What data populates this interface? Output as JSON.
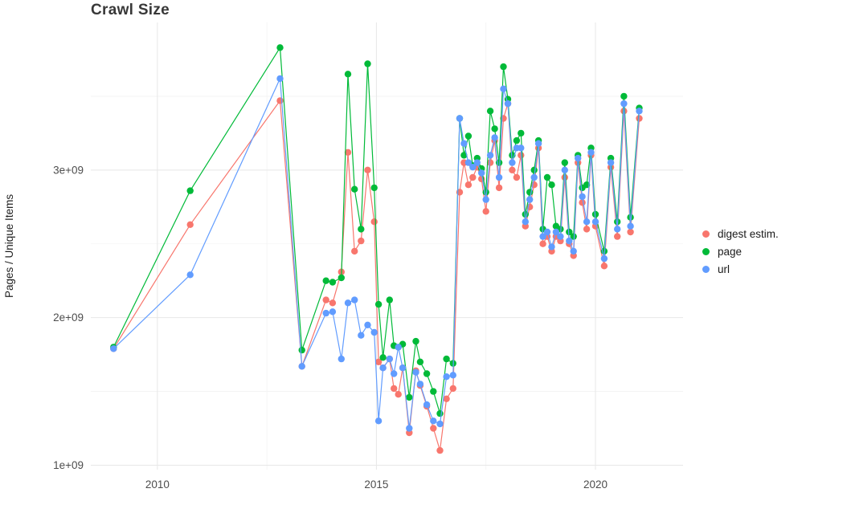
{
  "title": "Crawl Size",
  "ylabel": "Pages / Unique Items",
  "colors": {
    "digest": "#F8766D",
    "page": "#00BA38",
    "url": "#619CFF",
    "grid_major": "#E7E7E7",
    "grid_minor": "#F3F3F3",
    "axis_text": "#4d4d4d"
  },
  "chart_data": {
    "type": "line",
    "title": "Crawl Size",
    "xlabel": "",
    "ylabel": "Pages / Unique Items",
    "grid": true,
    "legend_position": "right",
    "x_range": [
      2008.48,
      2022.0
    ],
    "y_range": [
      970000000,
      4000000000
    ],
    "x_ticks": {
      "values": [
        2010,
        2015,
        2020
      ],
      "labels": [
        "2010",
        "2015",
        "2020"
      ]
    },
    "y_ticks": {
      "values": [
        1000000000,
        2000000000,
        3000000000
      ],
      "labels": [
        "1e+09",
        "2e+09",
        "3e+09"
      ]
    },
    "x_minor": [
      2012.5,
      2017.5
    ],
    "y_minor": [
      1500000000,
      2500000000,
      3500000000
    ],
    "x": [
      2009.0,
      2010.75,
      2012.8,
      2013.3,
      2013.85,
      2014.0,
      2014.2,
      2014.35,
      2014.5,
      2014.65,
      2014.8,
      2014.95,
      2015.05,
      2015.15,
      2015.3,
      2015.4,
      2015.5,
      2015.6,
      2015.75,
      2015.9,
      2016.0,
      2016.15,
      2016.3,
      2016.45,
      2016.6,
      2016.75,
      2016.9,
      2017.0,
      2017.1,
      2017.2,
      2017.3,
      2017.4,
      2017.5,
      2017.6,
      2017.7,
      2017.8,
      2017.9,
      2018.0,
      2018.1,
      2018.2,
      2018.3,
      2018.4,
      2018.5,
      2018.6,
      2018.7,
      2018.8,
      2018.9,
      2019.0,
      2019.1,
      2019.2,
      2019.3,
      2019.4,
      2019.5,
      2019.6,
      2019.7,
      2019.8,
      2019.9,
      2020.0,
      2020.2,
      2020.35,
      2020.5,
      2020.65,
      2020.8,
      2021.0
    ],
    "series": [
      {
        "name": "digest estim.",
        "color": "#F8766D",
        "values": [
          1790000000.0,
          2630000000.0,
          3470000000.0,
          1670000000.0,
          2120000000.0,
          2100000000.0,
          2310000000.0,
          3120000000.0,
          2450000000.0,
          2520000000.0,
          3000000000.0,
          2650000000.0,
          1700000000.0,
          1660000000.0,
          1720000000.0,
          1520000000.0,
          1480000000.0,
          1660000000.0,
          1220000000.0,
          1640000000.0,
          1540000000.0,
          1400000000.0,
          1250000000.0,
          1100000000.0,
          1450000000.0,
          1520000000.0,
          2850000000.0,
          3050000000.0,
          2900000000.0,
          2950000000.0,
          3020000000.0,
          2940000000.0,
          2720000000.0,
          3050000000.0,
          3200000000.0,
          2880000000.0,
          3350000000.0,
          3450000000.0,
          3000000000.0,
          2950000000.0,
          3100000000.0,
          2620000000.0,
          2750000000.0,
          2900000000.0,
          3150000000.0,
          2500000000.0,
          2550000000.0,
          2450000000.0,
          2550000000.0,
          2520000000.0,
          2950000000.0,
          2500000000.0,
          2420000000.0,
          3050000000.0,
          2780000000.0,
          2600000000.0,
          3100000000.0,
          2620000000.0,
          2350000000.0,
          3020000000.0,
          2550000000.0,
          3400000000.0,
          2580000000.0,
          3350000000.0
        ]
      },
      {
        "name": "page",
        "color": "#00BA38",
        "values": [
          1800000000.0,
          2860000000.0,
          3830000000.0,
          1780000000.0,
          2250000000.0,
          2240000000.0,
          2270000000.0,
          3650000000.0,
          2870000000.0,
          2600000000.0,
          3720000000.0,
          2880000000.0,
          2090000000.0,
          1730000000.0,
          2120000000.0,
          1810000000.0,
          1800000000.0,
          1820000000.0,
          1460000000.0,
          1840000000.0,
          1700000000.0,
          1620000000.0,
          1500000000.0,
          1350000000.0,
          1720000000.0,
          1690000000.0,
          3350000000.0,
          3100000000.0,
          3230000000.0,
          3030000000.0,
          3080000000.0,
          3010000000.0,
          2850000000.0,
          3400000000.0,
          3280000000.0,
          3050000000.0,
          3700000000.0,
          3480000000.0,
          3100000000.0,
          3200000000.0,
          3250000000.0,
          2700000000.0,
          2850000000.0,
          3000000000.0,
          3200000000.0,
          2600000000.0,
          2950000000.0,
          2900000000.0,
          2620000000.0,
          2600000000.0,
          3050000000.0,
          2580000000.0,
          2550000000.0,
          3100000000.0,
          2880000000.0,
          2900000000.0,
          3150000000.0,
          2700000000.0,
          2450000000.0,
          3080000000.0,
          2650000000.0,
          3500000000.0,
          2680000000.0,
          3420000000.0
        ]
      },
      {
        "name": "url",
        "color": "#619CFF",
        "values": [
          1790000000.0,
          2290000000.0,
          3620000000.0,
          1670000000.0,
          2030000000.0,
          2040000000.0,
          1720000000.0,
          2100000000.0,
          2120000000.0,
          1880000000.0,
          1950000000.0,
          1900000000.0,
          1300000000.0,
          1660000000.0,
          1720000000.0,
          1620000000.0,
          1800000000.0,
          1660000000.0,
          1250000000.0,
          1630000000.0,
          1550000000.0,
          1410000000.0,
          1300000000.0,
          1280000000.0,
          1600000000.0,
          1610000000.0,
          3350000000.0,
          3180000000.0,
          3050000000.0,
          3020000000.0,
          3050000000.0,
          2980000000.0,
          2800000000.0,
          3100000000.0,
          3220000000.0,
          2950000000.0,
          3550000000.0,
          3450000000.0,
          3050000000.0,
          3150000000.0,
          3150000000.0,
          2650000000.0,
          2800000000.0,
          2950000000.0,
          3180000000.0,
          2550000000.0,
          2580000000.0,
          2480000000.0,
          2580000000.0,
          2550000000.0,
          3000000000.0,
          2520000000.0,
          2450000000.0,
          3080000000.0,
          2820000000.0,
          2650000000.0,
          3120000000.0,
          2650000000.0,
          2400000000.0,
          3050000000.0,
          2600000000.0,
          3450000000.0,
          2620000000.0,
          3400000000.0
        ]
      }
    ]
  }
}
